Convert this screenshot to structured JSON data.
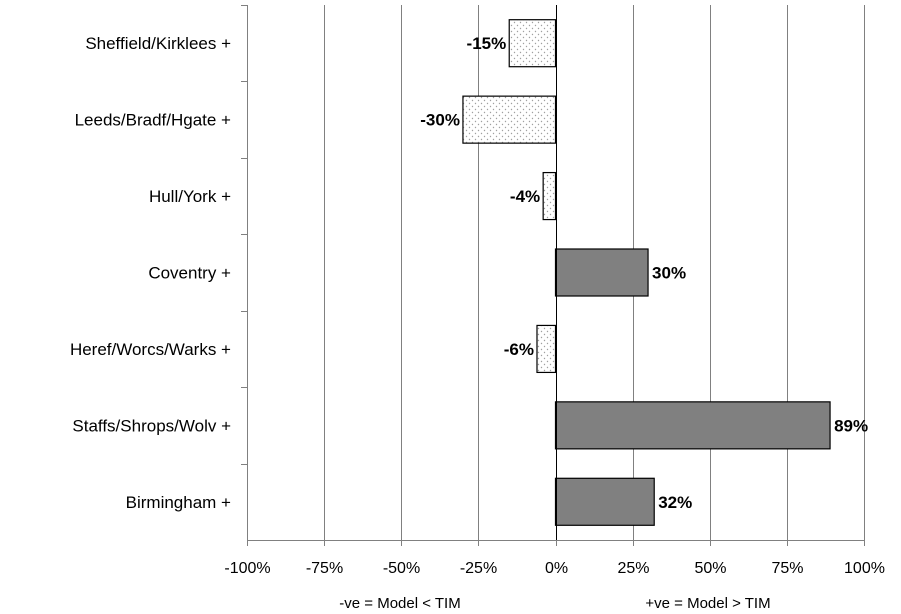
{
  "chart_data": {
    "type": "bar",
    "orientation": "horizontal",
    "categories": [
      "Sheffield/Kirklees +",
      "Leeds/Bradf/Hgate +",
      "Hull/York +",
      "Coventry +",
      "Heref/Worcs/Warks +",
      "Staffs/Shrops/Wolv +",
      "Birmingham +"
    ],
    "values": [
      -15,
      -30,
      -4,
      30,
      -6,
      89,
      32
    ],
    "data_labels": [
      "-15%",
      "-30%",
      "-4%",
      "30%",
      "-6%",
      "89%",
      "32%"
    ],
    "unit": "%",
    "xlim": [
      -100,
      100
    ],
    "x_ticks": [
      -100,
      -75,
      -50,
      -25,
      0,
      25,
      50,
      75,
      100
    ],
    "x_tick_labels": [
      "-100%",
      "-75%",
      "-50%",
      "-25%",
      "0%",
      "25%",
      "50%",
      "75%",
      "100%"
    ],
    "xlabel_left": "-ve = Model < TIM",
    "xlabel_right": "+ve = Model > TIM",
    "grid": "vertical",
    "legend": "none",
    "colors": {
      "positive": "#808080",
      "negative_dots": "#a0a0a0",
      "grid": "#808080",
      "axis": "#808080"
    }
  }
}
